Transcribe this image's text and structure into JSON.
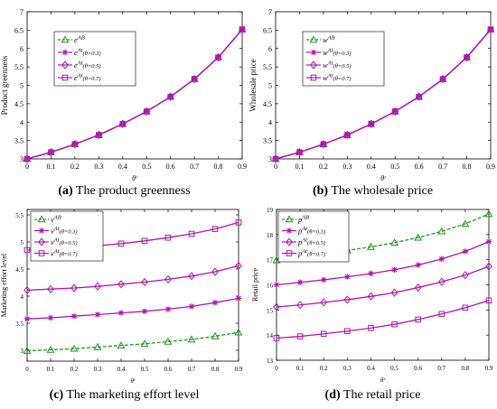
{
  "captions": [
    {
      "letter": "(a)",
      "text": "The product greenness"
    },
    {
      "letter": "(b)",
      "text": "The wholesale price"
    },
    {
      "letter": "(c)",
      "text": "The marketing effort level"
    },
    {
      "letter": "(d)",
      "text": "The retail price"
    }
  ],
  "colors": {
    "green_series": "#1a9a1a",
    "magenta_series": "#b016b0",
    "axis": "#000000"
  },
  "chart_data": [
    {
      "type": "line",
      "ylabel": "Product greenness",
      "xlabel": "θʳ",
      "xlim": [
        0,
        0.9
      ],
      "ylim": [
        3,
        7
      ],
      "x_ticks": [
        "0",
        "0.1",
        "0.2",
        "0.3",
        "0.4",
        "0.5",
        "0.6",
        "0.7",
        "0.8",
        "0.9"
      ],
      "y_ticks": [
        "3",
        "3.5",
        "4",
        "4.5",
        "5",
        "5.5",
        "6",
        "6.5",
        "7"
      ],
      "grid": false,
      "legend_position": "top-left",
      "x": [
        0,
        0.1,
        0.2,
        0.3,
        0.4,
        0.5,
        0.6,
        0.7,
        0.8,
        0.9
      ],
      "series": [
        {
          "name": "e^{AB}",
          "marker": "triangle",
          "color": "green",
          "dashed": true,
          "values": [
            3.0,
            3.18,
            3.4,
            3.65,
            3.95,
            4.29,
            4.69,
            5.17,
            5.76,
            6.52
          ]
        },
        {
          "name": "e^{At}(θ=0.3)",
          "marker": "star",
          "color": "magenta",
          "dashed": false,
          "values": [
            3.0,
            3.18,
            3.4,
            3.65,
            3.95,
            4.29,
            4.69,
            5.17,
            5.76,
            6.52
          ]
        },
        {
          "name": "e^{At}(θ=0.5)",
          "marker": "diamond",
          "color": "magenta",
          "dashed": false,
          "values": [
            3.0,
            3.18,
            3.4,
            3.65,
            3.95,
            4.29,
            4.69,
            5.17,
            5.76,
            6.52
          ]
        },
        {
          "name": "e^{At}(θ=0.7)",
          "marker": "square",
          "color": "magenta",
          "dashed": false,
          "values": [
            3.0,
            3.18,
            3.4,
            3.65,
            3.95,
            4.29,
            4.69,
            5.17,
            5.76,
            6.52
          ]
        }
      ]
    },
    {
      "type": "line",
      "ylabel": "Wholesale price",
      "xlabel": "θʳ",
      "xlim": [
        0,
        0.9
      ],
      "ylim": [
        3,
        7
      ],
      "x_ticks": [
        "0",
        "0.1",
        "0.2",
        "0.3",
        "0.4",
        "0.5",
        "0.6",
        "0.7",
        "0.8",
        "0.9"
      ],
      "y_ticks": [
        "3",
        "3.5",
        "4",
        "4.5",
        "5",
        "5.5",
        "6",
        "6.5",
        "7"
      ],
      "grid": false,
      "legend_position": "top-left",
      "x": [
        0,
        0.1,
        0.2,
        0.3,
        0.4,
        0.5,
        0.6,
        0.7,
        0.8,
        0.9
      ],
      "series": [
        {
          "name": "w^{AB}",
          "marker": "triangle",
          "color": "green",
          "dashed": true,
          "values": [
            3.0,
            3.18,
            3.4,
            3.65,
            3.95,
            4.29,
            4.69,
            5.17,
            5.76,
            6.52
          ]
        },
        {
          "name": "w^{At}(θ=0.3)",
          "marker": "star",
          "color": "magenta",
          "dashed": false,
          "values": [
            3.0,
            3.18,
            3.4,
            3.65,
            3.95,
            4.29,
            4.69,
            5.17,
            5.76,
            6.52
          ]
        },
        {
          "name": "w^{At}(θ=0.5)",
          "marker": "diamond",
          "color": "magenta",
          "dashed": false,
          "values": [
            3.0,
            3.18,
            3.4,
            3.65,
            3.95,
            4.29,
            4.69,
            5.17,
            5.76,
            6.52
          ]
        },
        {
          "name": "w^{At}(θ=0.7)",
          "marker": "square",
          "color": "magenta",
          "dashed": false,
          "values": [
            3.0,
            3.18,
            3.4,
            3.65,
            3.95,
            4.29,
            4.69,
            5.17,
            5.76,
            6.52
          ]
        }
      ]
    },
    {
      "type": "line",
      "ylabel": "Marketing effort level",
      "xlabel": "θʳ",
      "xlim": [
        0,
        0.9
      ],
      "ylim": [
        2.8,
        5.6
      ],
      "x_ticks": [
        "0",
        "0.1",
        "0.2",
        "0.3",
        "0.4",
        "0.5",
        "0.6",
        "0.7",
        "0.8",
        "0.9"
      ],
      "y_ticks": [
        "3",
        "3.5",
        "4",
        "4.5",
        "5",
        "5.5"
      ],
      "y_tick_values": [
        3,
        3.5,
        4,
        4.5,
        5,
        5.5
      ],
      "grid": false,
      "legend_position": "top-left",
      "x": [
        0,
        0.1,
        0.2,
        0.3,
        0.4,
        0.5,
        0.6,
        0.7,
        0.8,
        0.9
      ],
      "series": [
        {
          "name": "v^{AB}",
          "marker": "triangle",
          "color": "green",
          "dashed": true,
          "values": [
            2.99,
            3.01,
            3.03,
            3.06,
            3.09,
            3.12,
            3.16,
            3.2,
            3.26,
            3.33
          ]
        },
        {
          "name": "v^{At}(θ=0.3)",
          "marker": "star",
          "color": "magenta",
          "dashed": false,
          "values": [
            3.58,
            3.6,
            3.63,
            3.66,
            3.69,
            3.72,
            3.76,
            3.81,
            3.88,
            3.96
          ]
        },
        {
          "name": "v^{At}(θ=0.5)",
          "marker": "diamond",
          "color": "magenta",
          "dashed": false,
          "values": [
            4.11,
            4.13,
            4.15,
            4.18,
            4.22,
            4.26,
            4.31,
            4.37,
            4.45,
            4.56
          ]
        },
        {
          "name": "v^{At}(θ=0.7)",
          "marker": "square",
          "color": "magenta",
          "dashed": false,
          "values": [
            4.85,
            4.87,
            4.9,
            4.93,
            4.97,
            5.02,
            5.08,
            5.15,
            5.24,
            5.36
          ]
        }
      ]
    },
    {
      "type": "line",
      "ylabel": "Retail price",
      "xlabel": "θʳ",
      "xlim": [
        0,
        0.9
      ],
      "ylim": [
        13,
        19
      ],
      "x_ticks": [
        "0",
        "0.1",
        "0.2",
        "0.3",
        "0.4",
        "0.5",
        "0.6",
        "0.7",
        "0.8",
        "0.9"
      ],
      "y_ticks": [
        "13",
        "14",
        "15",
        "16",
        "17",
        "18",
        "19"
      ],
      "grid": false,
      "legend_position": "top-left",
      "x": [
        0,
        0.1,
        0.2,
        0.3,
        0.4,
        0.5,
        0.6,
        0.7,
        0.8,
        0.9
      ],
      "series": [
        {
          "name": "p^{AB}",
          "marker": "triangle",
          "color": "green",
          "dashed": true,
          "values": [
            16.98,
            17.1,
            17.23,
            17.37,
            17.51,
            17.68,
            17.88,
            18.13,
            18.43,
            18.82
          ]
        },
        {
          "name": "p^{At}(θ=0.3)",
          "marker": "star",
          "color": "magenta",
          "dashed": false,
          "values": [
            16.0,
            16.1,
            16.2,
            16.32,
            16.45,
            16.6,
            16.79,
            17.03,
            17.33,
            17.72
          ]
        },
        {
          "name": "p^{At}(θ=0.5)",
          "marker": "diamond",
          "color": "magenta",
          "dashed": false,
          "values": [
            15.12,
            15.2,
            15.3,
            15.41,
            15.54,
            15.69,
            15.89,
            16.12,
            16.39,
            16.73
          ]
        },
        {
          "name": "p^{At}(θ=0.7)",
          "marker": "square",
          "color": "magenta",
          "dashed": false,
          "values": [
            13.88,
            13.95,
            14.05,
            14.16,
            14.28,
            14.43,
            14.62,
            14.84,
            15.09,
            15.38
          ]
        }
      ]
    }
  ]
}
